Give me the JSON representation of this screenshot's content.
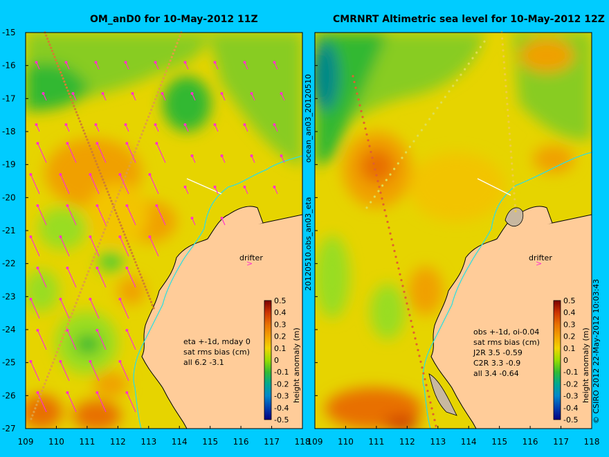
{
  "left_panel": {
    "title": "OM_anD0 for 10-May-2012 11Z",
    "stats": [
      "eta +-1d, mday 0",
      "sat rms bias (cm)",
      "all 6.2 -3.1"
    ],
    "drifter_label": "drifter"
  },
  "right_panel": {
    "title": "CMRNRT Altimetric sea level  for 10-May-2012 12Z",
    "stats": [
      "obs +-1d, oi-0.04",
      "sat rms bias (cm)",
      "J2R   3.5 -0.59",
      "C2R   3.3 -0.9",
      "all 3.4 -0.64"
    ],
    "drifter_label": "drifter"
  },
  "middle_caption": "20120510.obs_an03_eta",
  "middle_caption_top": "ocean_an03_20120510",
  "right_caption": "© CSIRO 2012   22-May-2012 10:03:43",
  "colorbar": {
    "label": "height anomaly (m)",
    "ticks": [
      "0.5",
      "0.4",
      "0.3",
      "0.2",
      "0.1",
      "0",
      "-0.1",
      "-0.2",
      "-0.3",
      "-0.4",
      "-0.5"
    ]
  },
  "axes": {
    "lat_ticks": [
      "-15",
      "-16",
      "-17",
      "-18",
      "-19",
      "-20",
      "-21",
      "-22",
      "-23",
      "-24",
      "-25",
      "-26",
      "-27"
    ],
    "lon_ticks_left": [
      "109",
      "110",
      "111",
      "112",
      "113",
      "114",
      "115",
      "116",
      "117",
      "118"
    ],
    "lon_ticks_right": [
      "109",
      "110",
      "111",
      "112",
      "113",
      "114",
      "115",
      "116",
      "117",
      "118"
    ],
    "lat_range": [
      -27,
      -15
    ],
    "lon_range": [
      109,
      118
    ]
  },
  "colors": {
    "background": "#00ccff",
    "land": "#ffcc99",
    "vector": "#ff33cc",
    "coast": "#000000",
    "isobath": "#33dddd"
  }
}
